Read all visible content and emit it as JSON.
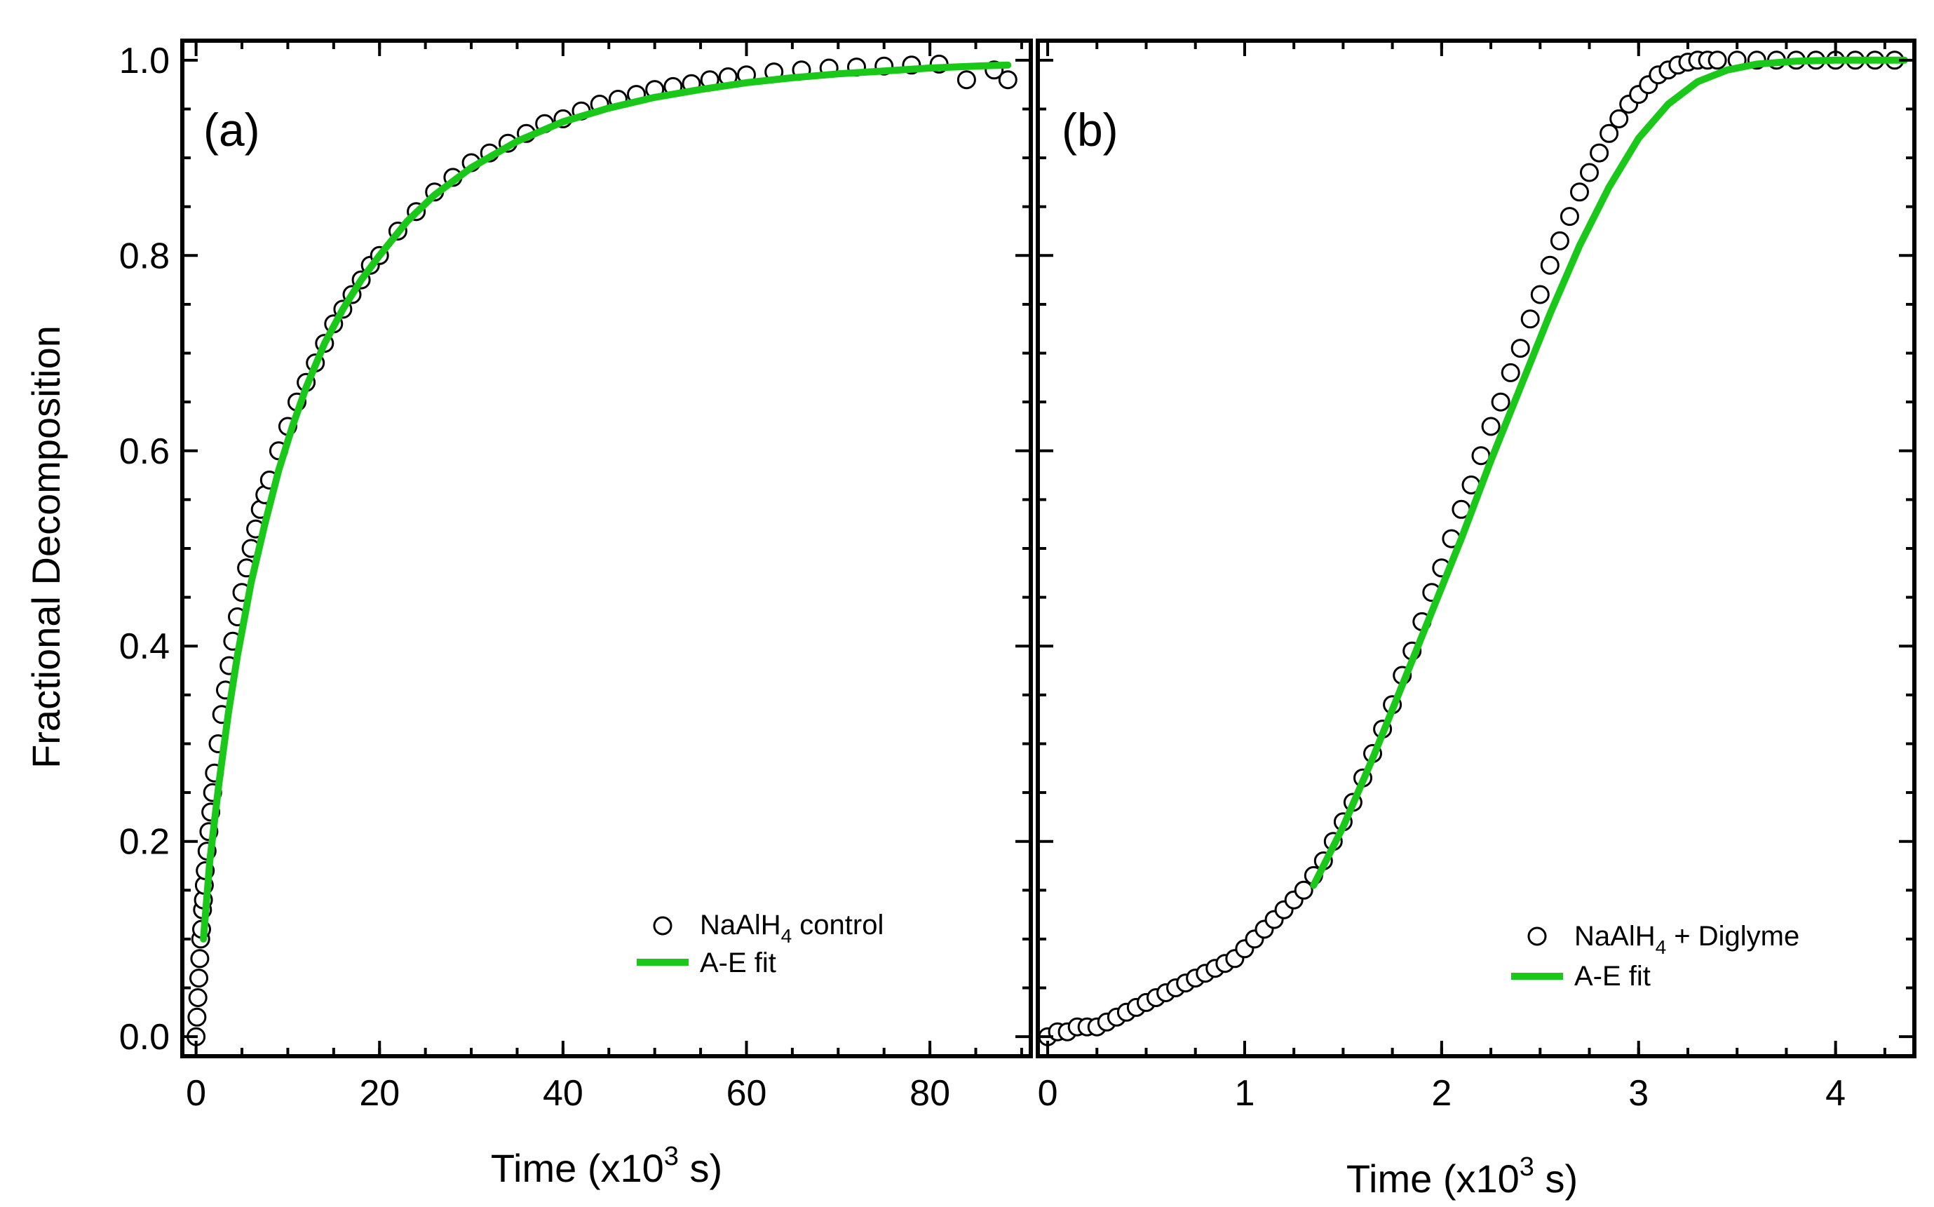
{
  "y_axis_label": "Fractional Decomposition",
  "colors": {
    "fit": "#19c819",
    "marker_edge": "#000000",
    "frame": "#000000"
  },
  "chart_data": [
    {
      "id": "a",
      "type": "scatter",
      "panel_label": "(a)",
      "xlabel": {
        "main": "Time (x10",
        "sup": "3",
        "tail": " s)"
      },
      "ylabel": "Fractional Decomposition",
      "xlim": [
        -1.5,
        91
      ],
      "ylim": [
        -0.02,
        1.02
      ],
      "xticks": [
        0,
        20,
        40,
        60,
        80
      ],
      "xtick_labels": [
        "0",
        "20",
        "40",
        "60",
        "80"
      ],
      "yticks": [
        0,
        0.2,
        0.4,
        0.6,
        0.8,
        1.0
      ],
      "ytick_labels": [
        "0.0",
        "0.2",
        "0.4",
        "0.6",
        "0.8",
        "1.0"
      ],
      "legend": {
        "position": "bottom-right",
        "entries": [
          {
            "kind": "marker",
            "label": "NaAlH",
            "sub": "4",
            "tail": " control"
          },
          {
            "kind": "line",
            "label": "A-E fit"
          }
        ]
      },
      "series": [
        {
          "name": "NaAlH4 control",
          "kind": "markers",
          "x": [
            0.0,
            0.1,
            0.2,
            0.3,
            0.4,
            0.5,
            0.6,
            0.7,
            0.8,
            0.9,
            1.0,
            1.2,
            1.4,
            1.6,
            1.8,
            2.0,
            2.4,
            2.8,
            3.2,
            3.6,
            4.0,
            4.5,
            5.0,
            5.5,
            6.0,
            6.5,
            7.0,
            7.5,
            8.0,
            9.0,
            10.0,
            11.0,
            12.0,
            13.0,
            14.0,
            15.0,
            16.0,
            17.0,
            18.0,
            19.0,
            20.0,
            22.0,
            24.0,
            26.0,
            28.0,
            30.0,
            32.0,
            34.0,
            36.0,
            38.0,
            40.0,
            42.0,
            44.0,
            46.0,
            48.0,
            50.0,
            52.0,
            54.0,
            56.0,
            58.0,
            60.0,
            63.0,
            66.0,
            69.0,
            72.0,
            75.0,
            78.0,
            81.0,
            84.0,
            87.0,
            88.5
          ],
          "y": [
            0.0,
            0.02,
            0.04,
            0.06,
            0.08,
            0.1,
            0.11,
            0.13,
            0.14,
            0.155,
            0.17,
            0.19,
            0.21,
            0.23,
            0.25,
            0.27,
            0.3,
            0.33,
            0.355,
            0.38,
            0.405,
            0.43,
            0.455,
            0.48,
            0.5,
            0.52,
            0.54,
            0.555,
            0.57,
            0.6,
            0.625,
            0.65,
            0.67,
            0.69,
            0.71,
            0.73,
            0.745,
            0.76,
            0.775,
            0.79,
            0.8,
            0.825,
            0.845,
            0.865,
            0.88,
            0.895,
            0.905,
            0.915,
            0.925,
            0.935,
            0.94,
            0.948,
            0.955,
            0.96,
            0.965,
            0.97,
            0.973,
            0.976,
            0.98,
            0.983,
            0.985,
            0.988,
            0.99,
            0.992,
            0.993,
            0.994,
            0.995,
            0.996,
            0.98,
            0.99,
            0.98
          ]
        },
        {
          "name": "A-E fit",
          "kind": "line",
          "x": [
            0.8,
            1.5,
            2.5,
            3.5,
            4.5,
            6.0,
            7.5,
            9.0,
            10.5,
            12.0,
            14.0,
            16.0,
            18.0,
            20.0,
            23.0,
            26.0,
            30.0,
            35.0,
            40.0,
            45.0,
            50.0,
            55.0,
            60.0,
            65.0,
            70.0,
            75.0,
            80.0,
            85.0,
            88.5
          ],
          "y": [
            0.1,
            0.18,
            0.26,
            0.33,
            0.39,
            0.465,
            0.525,
            0.58,
            0.625,
            0.665,
            0.71,
            0.745,
            0.775,
            0.8,
            0.835,
            0.862,
            0.89,
            0.917,
            0.937,
            0.951,
            0.962,
            0.97,
            0.977,
            0.982,
            0.986,
            0.989,
            0.992,
            0.994,
            0.995
          ]
        }
      ]
    },
    {
      "id": "b",
      "type": "scatter",
      "panel_label": "(b)",
      "xlabel": {
        "main": "Time (x10",
        "sup": "3",
        "tail": " s)"
      },
      "ylabel": "",
      "xlim": [
        -0.05,
        4.4
      ],
      "ylim": [
        -0.02,
        1.02
      ],
      "xticks": [
        0,
        1,
        2,
        3,
        4
      ],
      "xtick_labels": [
        "0",
        "1",
        "2",
        "3",
        "4"
      ],
      "yticks": [
        0,
        0.2,
        0.4,
        0.6,
        0.8,
        1.0
      ],
      "ytick_labels": [
        "0.0",
        "0.2",
        "0.4",
        "0.6",
        "0.8",
        "1.0"
      ],
      "legend": {
        "position": "bottom-right",
        "entries": [
          {
            "kind": "marker",
            "label": "NaAlH",
            "sub": "4",
            "tail": " + Diglyme"
          },
          {
            "kind": "line",
            "label": "A-E fit"
          }
        ]
      },
      "series": [
        {
          "name": "NaAlH4 + Diglyme",
          "kind": "markers",
          "x": [
            0.0,
            0.05,
            0.1,
            0.15,
            0.2,
            0.25,
            0.3,
            0.35,
            0.4,
            0.45,
            0.5,
            0.55,
            0.6,
            0.65,
            0.7,
            0.75,
            0.8,
            0.85,
            0.9,
            0.95,
            1.0,
            1.05,
            1.1,
            1.15,
            1.2,
            1.25,
            1.3,
            1.35,
            1.4,
            1.45,
            1.5,
            1.55,
            1.6,
            1.65,
            1.7,
            1.75,
            1.8,
            1.85,
            1.9,
            1.95,
            2.0,
            2.05,
            2.1,
            2.15,
            2.2,
            2.25,
            2.3,
            2.35,
            2.4,
            2.45,
            2.5,
            2.55,
            2.6,
            2.65,
            2.7,
            2.75,
            2.8,
            2.85,
            2.9,
            2.95,
            3.0,
            3.05,
            3.1,
            3.15,
            3.2,
            3.25,
            3.3,
            3.35,
            3.4,
            3.5,
            3.6,
            3.7,
            3.8,
            3.9,
            4.0,
            4.1,
            4.2,
            4.3
          ],
          "y": [
            0.0,
            0.005,
            0.005,
            0.01,
            0.01,
            0.01,
            0.015,
            0.02,
            0.025,
            0.03,
            0.035,
            0.04,
            0.045,
            0.05,
            0.055,
            0.06,
            0.065,
            0.07,
            0.075,
            0.08,
            0.09,
            0.1,
            0.11,
            0.12,
            0.13,
            0.14,
            0.15,
            0.165,
            0.18,
            0.2,
            0.22,
            0.24,
            0.265,
            0.29,
            0.315,
            0.34,
            0.37,
            0.395,
            0.425,
            0.455,
            0.48,
            0.51,
            0.54,
            0.565,
            0.595,
            0.625,
            0.65,
            0.68,
            0.705,
            0.735,
            0.76,
            0.79,
            0.815,
            0.84,
            0.865,
            0.885,
            0.905,
            0.925,
            0.94,
            0.955,
            0.965,
            0.975,
            0.985,
            0.99,
            0.995,
            0.998,
            1.0,
            1.0,
            1.0,
            1.0,
            1.0,
            1.0,
            1.0,
            1.0,
            1.0,
            1.0,
            1.0,
            1.0
          ]
        },
        {
          "name": "A-E fit",
          "kind": "line",
          "x": [
            1.35,
            1.5,
            1.65,
            1.8,
            1.95,
            2.1,
            2.25,
            2.4,
            2.55,
            2.7,
            2.85,
            3.0,
            3.15,
            3.3,
            3.45,
            3.6,
            3.8,
            4.0,
            4.2,
            4.35
          ],
          "y": [
            0.155,
            0.215,
            0.285,
            0.36,
            0.435,
            0.51,
            0.59,
            0.665,
            0.74,
            0.81,
            0.87,
            0.92,
            0.955,
            0.978,
            0.99,
            0.996,
            0.999,
            1.0,
            1.0,
            1.0
          ]
        }
      ]
    }
  ]
}
